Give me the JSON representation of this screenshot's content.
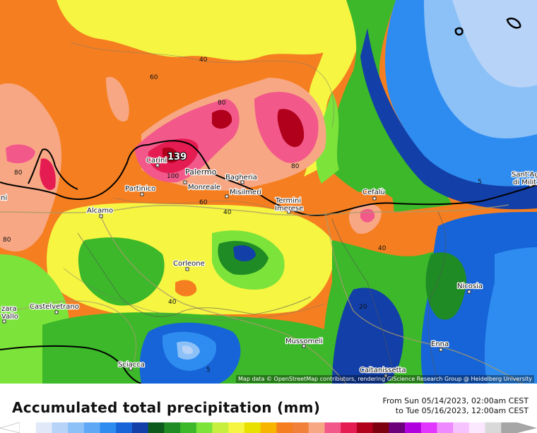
{
  "map": {
    "title": "Accumulated total precipitation (mm)",
    "period_from": "From Sun 05/14/2023, 02:00am CEST",
    "period_to": "to Tue 05/16/2023, 12:00am CEST",
    "attribution": "Map data © OpenStreetMap contributors, rendering GIScience Research Group @ Heidelberg University",
    "max_value_label": "139",
    "cities": [
      {
        "name": "Carini"
      },
      {
        "name": "Palermo"
      },
      {
        "name": "Bagheria"
      },
      {
        "name": "Monreale"
      },
      {
        "name": "Misilmeri"
      },
      {
        "name": "Partinico"
      },
      {
        "name": "Termini"
      },
      {
        "name": "Imerese"
      },
      {
        "name": "Cefalù"
      },
      {
        "name": "Alcamo"
      },
      {
        "name": "Corleone"
      },
      {
        "name": "Castelvetrano"
      },
      {
        "name": "Nicosia"
      },
      {
        "name": "Sciacca"
      },
      {
        "name": "Mussomeli"
      },
      {
        "name": "Enna"
      },
      {
        "name": "Caltanissetta"
      },
      {
        "name": "Sant'Ag"
      },
      {
        "name": "di Milit"
      },
      {
        "name": "zara"
      },
      {
        "name": "Vallo"
      },
      {
        "name": "ni"
      }
    ],
    "contour_labels": [
      "40",
      "60",
      "80",
      "80",
      "80",
      "100",
      "60",
      "40",
      "80",
      "40",
      "40",
      "20",
      "5",
      "5"
    ],
    "legend_colors": [
      "#ffffff",
      "#e1e9f8",
      "#b7d3f8",
      "#8cc1f7",
      "#5ea8f5",
      "#2e8cf0",
      "#1664d8",
      "#123fa8",
      "#0d5a1d",
      "#1f8b24",
      "#3cb82a",
      "#7ce33b",
      "#c7ef3f",
      "#f5f542",
      "#e8e000",
      "#f7b500",
      "#f57f20",
      "#f1813a",
      "#f7a784",
      "#f2598a",
      "#e51c52",
      "#b0001c",
      "#7d0010",
      "#6b007a",
      "#b000e0",
      "#e036ff",
      "#ef89ff",
      "#f7c3ff",
      "#fbe8ff",
      "#d9d9d9",
      "#a6a6a6"
    ]
  }
}
